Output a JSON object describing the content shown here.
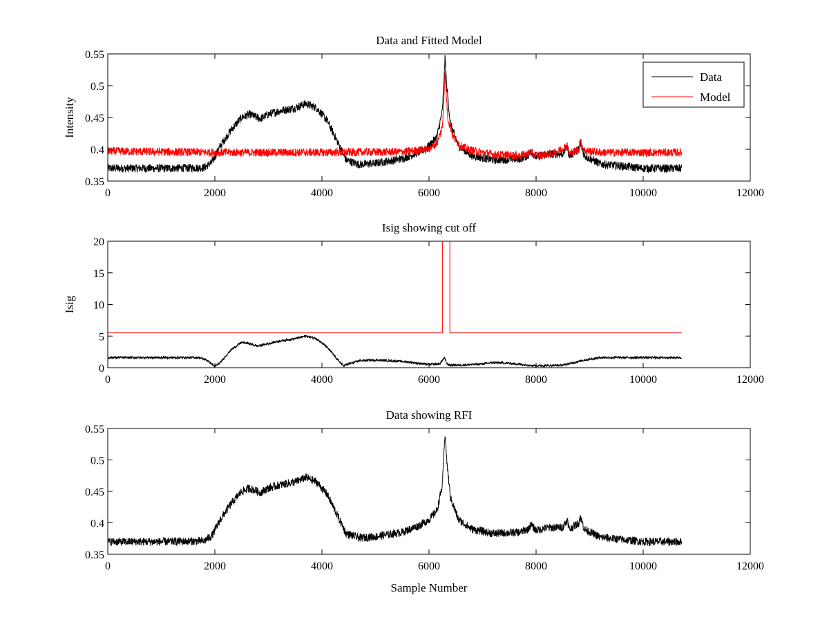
{
  "chart_data": [
    {
      "type": "line",
      "title": "Data and Fitted Model",
      "xlabel": "",
      "ylabel": "Intensity",
      "xlim": [
        0,
        12000
      ],
      "ylim": [
        0.35,
        0.55
      ],
      "xticks": [
        0,
        2000,
        4000,
        6000,
        8000,
        10000,
        12000
      ],
      "xtick_labels": [
        "0",
        "2000",
        "4000",
        "6000",
        "8000",
        "10000",
        "12000"
      ],
      "yticks": [
        0.35,
        0.4,
        0.45,
        0.5,
        0.55
      ],
      "ytick_labels": [
        "0.35",
        "0.4",
        "0.45",
        "0.5",
        "0.55"
      ],
      "legend": {
        "position": "top-right",
        "entries": [
          "Data",
          "Model"
        ]
      },
      "noise_amplitude": 0.013,
      "series": [
        {
          "name": "Data",
          "color": "#000000",
          "x": [
            0,
            1000,
            1800,
            1950,
            2100,
            2300,
            2500,
            2650,
            2850,
            3000,
            3200,
            3500,
            3700,
            3900,
            4100,
            4300,
            4450,
            4700,
            5000,
            5500,
            5800,
            6000,
            6150,
            6250,
            6300,
            6330,
            6400,
            6550,
            6800,
            7200,
            7700,
            7850,
            7900,
            8000,
            8200,
            8500,
            8580,
            8620,
            8800,
            8820,
            8900,
            9200,
            10000,
            10720
          ],
          "y": [
            0.37,
            0.37,
            0.371,
            0.38,
            0.405,
            0.43,
            0.45,
            0.455,
            0.448,
            0.455,
            0.46,
            0.465,
            0.472,
            0.465,
            0.445,
            0.41,
            0.383,
            0.376,
            0.378,
            0.385,
            0.395,
            0.405,
            0.42,
            0.46,
            0.545,
            0.5,
            0.44,
            0.405,
            0.39,
            0.383,
            0.385,
            0.39,
            0.397,
            0.388,
            0.392,
            0.393,
            0.405,
            0.39,
            0.4,
            0.412,
            0.39,
            0.377,
            0.37,
            0.37
          ]
        },
        {
          "name": "Model",
          "color": "#ff0000",
          "x": [
            0,
            2000,
            4000,
            5500,
            6000,
            6150,
            6250,
            6300,
            6350,
            6450,
            6600,
            6800,
            7200,
            7700,
            7900,
            8000,
            8300,
            8580,
            8620,
            8800,
            8830,
            8900,
            9200,
            10000,
            10720
          ],
          "y": [
            0.397,
            0.395,
            0.395,
            0.396,
            0.4,
            0.41,
            0.435,
            0.52,
            0.45,
            0.42,
            0.405,
            0.398,
            0.392,
            0.39,
            0.395,
            0.39,
            0.393,
            0.405,
            0.393,
            0.4,
            0.412,
            0.398,
            0.395,
            0.395,
            0.395
          ]
        }
      ]
    },
    {
      "type": "line",
      "title": "Isig showing cut off",
      "xlabel": "",
      "ylabel": "Isig",
      "xlim": [
        0,
        12000
      ],
      "ylim": [
        0,
        20
      ],
      "xticks": [
        0,
        2000,
        4000,
        6000,
        8000,
        10000,
        12000
      ],
      "xtick_labels": [
        "0",
        "2000",
        "4000",
        "6000",
        "8000",
        "10000",
        "12000"
      ],
      "yticks": [
        0,
        5,
        10,
        15,
        20
      ],
      "ytick_labels": [
        "0",
        "5",
        "10",
        "15",
        "20"
      ],
      "noise_amplitude": 0.35,
      "series": [
        {
          "color": "#ff0000",
          "noisy": false,
          "x": [
            0,
            6250,
            6250,
            6390,
            6390,
            10720
          ],
          "y": [
            5.5,
            5.5,
            20,
            20,
            5.5,
            5.5
          ]
        },
        {
          "color": "#000000",
          "x": [
            0,
            1000,
            1700,
            1850,
            2000,
            2100,
            2300,
            2500,
            2650,
            2800,
            3000,
            3200,
            3500,
            3700,
            3900,
            4100,
            4300,
            4400,
            4500,
            4700,
            5000,
            5500,
            6000,
            6200,
            6290,
            6330,
            6400,
            6600,
            7000,
            7200,
            7500,
            8000,
            8500,
            8700,
            8900,
            9200,
            9500,
            10000,
            10720
          ],
          "y": [
            1.6,
            1.6,
            1.6,
            1.2,
            0.2,
            0.8,
            2.8,
            4,
            3.8,
            3.4,
            3.8,
            4.2,
            4.6,
            5,
            4.6,
            3.2,
            1.2,
            0.3,
            0.6,
            1.1,
            1.2,
            1,
            0.5,
            0.6,
            1.6,
            0.6,
            0.4,
            0.4,
            0.6,
            0.8,
            0.7,
            0.3,
            0.4,
            0.8,
            1.2,
            1.6,
            1.6,
            1.6,
            1.6
          ]
        }
      ]
    },
    {
      "type": "line",
      "title": "Data showing RFI",
      "xlabel": "Sample Number",
      "ylabel": "",
      "xlim": [
        0,
        12000
      ],
      "ylim": [
        0.35,
        0.55
      ],
      "xticks": [
        0,
        2000,
        4000,
        6000,
        8000,
        10000,
        12000
      ],
      "xtick_labels": [
        "0",
        "2000",
        "4000",
        "6000",
        "8000",
        "10000",
        "12000"
      ],
      "yticks": [
        0.35,
        0.4,
        0.45,
        0.5,
        0.55
      ],
      "ytick_labels": [
        "0.35",
        "0.4",
        "0.45",
        "0.5",
        "0.55"
      ],
      "noise_amplitude": 0.013,
      "series": [
        {
          "color": "#000000",
          "x": [
            0,
            1000,
            1800,
            1950,
            2100,
            2300,
            2500,
            2650,
            2850,
            3000,
            3200,
            3500,
            3700,
            3900,
            4100,
            4300,
            4450,
            4700,
            5000,
            5500,
            5800,
            6000,
            6150,
            6250,
            6300,
            6330,
            6400,
            6550,
            6800,
            7200,
            7700,
            7850,
            7900,
            8000,
            8200,
            8500,
            8580,
            8620,
            8800,
            8820,
            8900,
            9200,
            10000,
            10720
          ],
          "y": [
            0.37,
            0.37,
            0.371,
            0.38,
            0.405,
            0.43,
            0.45,
            0.455,
            0.448,
            0.455,
            0.46,
            0.465,
            0.472,
            0.465,
            0.445,
            0.41,
            0.383,
            0.376,
            0.378,
            0.385,
            0.395,
            0.405,
            0.42,
            0.46,
            0.545,
            0.5,
            0.44,
            0.405,
            0.39,
            0.383,
            0.385,
            0.39,
            0.397,
            0.388,
            0.392,
            0.393,
            0.405,
            0.39,
            0.4,
            0.412,
            0.39,
            0.377,
            0.37,
            0.37
          ]
        }
      ]
    }
  ]
}
